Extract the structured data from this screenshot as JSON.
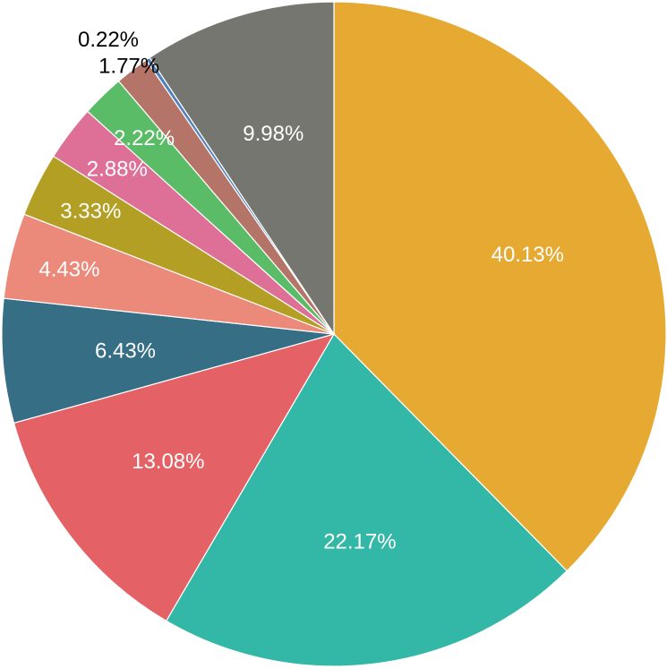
{
  "chart_data": {
    "type": "pie",
    "title": "",
    "start_angle_deg": 0,
    "direction": "clockwise",
    "slices": [
      {
        "label": "40.13%",
        "value": 40.13,
        "color": "#E6AA32",
        "text_color": "#FFFFFF"
      },
      {
        "label": "22.17%",
        "value": 22.17,
        "color": "#33B7A6",
        "text_color": "#FFFFFF"
      },
      {
        "label": "13.08%",
        "value": 13.08,
        "color": "#E46266",
        "text_color": "#FFFFFF"
      },
      {
        "label": "6.43%",
        "value": 6.43,
        "color": "#366E85",
        "text_color": "#FFFFFF"
      },
      {
        "label": "4.43%",
        "value": 4.43,
        "color": "#EB8A7B",
        "text_color": "#FFFFFF"
      },
      {
        "label": "3.33%",
        "value": 3.33,
        "color": "#B49F25",
        "text_color": "#FFFFFF"
      },
      {
        "label": "2.88%",
        "value": 2.88,
        "color": "#DE7097",
        "text_color": "#FFFFFF"
      },
      {
        "label": "2.22%",
        "value": 2.22,
        "color": "#5BBC68",
        "text_color": "#FFFFFF"
      },
      {
        "label": "1.77%",
        "value": 1.77,
        "color": "#B57468",
        "text_color": "#000000"
      },
      {
        "label": "0.22%",
        "value": 0.22,
        "color": "#4F81BD",
        "text_color": "#000000"
      },
      {
        "label": "9.98%",
        "value": 9.98,
        "color": "#767671",
        "text_color": "#FFFFFF"
      }
    ]
  }
}
